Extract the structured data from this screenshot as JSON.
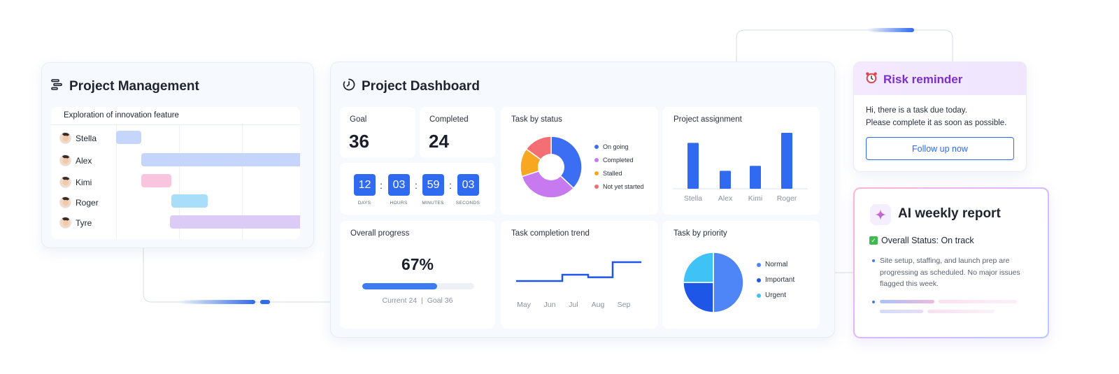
{
  "colors": {
    "accent_blue": "#2f6af0",
    "risk_purple": "#7b2fd0",
    "status_ongoing": "#3b6ef2",
    "status_completed": "#c77af0",
    "status_stalled": "#f7a820",
    "status_not_started": "#f46f74",
    "priority_normal": "#4f86f7",
    "priority_important": "#1e56e8",
    "priority_urgent": "#3fc2f5"
  },
  "project_management": {
    "title": "Project Management",
    "icon": "gantt-icon",
    "panel_title": "Exploration of innovation feature",
    "rows": [
      {
        "name": "Stella",
        "bar_color": "#c5d5fb"
      },
      {
        "name": "Alex",
        "bar_color": "#c5d5fb"
      },
      {
        "name": "Kimi",
        "bar_color": "#f9c4dd"
      },
      {
        "name": "Roger",
        "bar_color": "#a9defa"
      },
      {
        "name": "Tyre",
        "bar_color": "#dccbf7"
      }
    ]
  },
  "dashboard": {
    "title": "Project Dashboard",
    "icon": "dashboard-timer-icon",
    "goal": {
      "label": "Goal",
      "value": "36"
    },
    "completed": {
      "label": "Completed",
      "value": "24"
    },
    "countdown": [
      {
        "value": "12",
        "unit": "DAYS"
      },
      {
        "value": "03",
        "unit": "HOURS"
      },
      {
        "value": "59",
        "unit": "MINUTES"
      },
      {
        "value": "03",
        "unit": "SECONDS"
      }
    ],
    "overall_progress": {
      "label": "Overall progress",
      "percent_text": "67%",
      "fraction": 0.67,
      "current_label": "Current 24",
      "separator": "|",
      "goal_label": "Goal 36"
    },
    "task_by_status_title": "Task by status",
    "project_assignment_title": "Project assignment",
    "task_completion_trend_title": "Task completion trend",
    "task_by_priority_title": "Task by priority"
  },
  "chart_data": [
    {
      "type": "pie",
      "title": "Task by status",
      "donut": true,
      "legend_position": "right",
      "categories": [
        "On going",
        "Completed",
        "Stalled",
        "Not yet started"
      ],
      "values": [
        37,
        33,
        15,
        15
      ],
      "colors": [
        "#3b6ef2",
        "#c77af0",
        "#f7a820",
        "#f46f74"
      ]
    },
    {
      "type": "bar",
      "title": "Project assignment",
      "categories": [
        "Stella",
        "Alex",
        "Kimi",
        "Roger"
      ],
      "values": [
        8.2,
        3.2,
        4.1,
        10
      ],
      "ylim": [
        0,
        10
      ],
      "grid": false,
      "color": "#2f6af0"
    },
    {
      "type": "line",
      "title": "Task completion trend",
      "step": true,
      "categories": [
        "May",
        "Jun",
        "Jul",
        "Aug",
        "Sep"
      ],
      "values": [
        1,
        2,
        1.6,
        4,
        4
      ],
      "ylim": [
        0,
        5
      ],
      "color": "#1e56e8"
    },
    {
      "type": "pie",
      "title": "Task by priority",
      "donut": false,
      "legend_position": "right",
      "categories": [
        "Normal",
        "Important",
        "Urgent"
      ],
      "values": [
        50,
        25,
        25
      ],
      "colors": [
        "#4f86f7",
        "#1e56e8",
        "#3fc2f5"
      ]
    }
  ],
  "risk_reminder": {
    "title": "Risk reminder",
    "icon": "alarm-clock-icon",
    "line1": "Hi, there is a task due today.",
    "line2": "Please complete it as soon as possible.",
    "button": "Follow up now"
  },
  "ai_report": {
    "title": "AI weekly report",
    "icon": "sparkle-icon",
    "status_icon": "check-box-icon",
    "status": "Overall Status: On track",
    "body": "Site setup, staffing, and launch prep are progressing as scheduled. No major issues flagged this week."
  }
}
